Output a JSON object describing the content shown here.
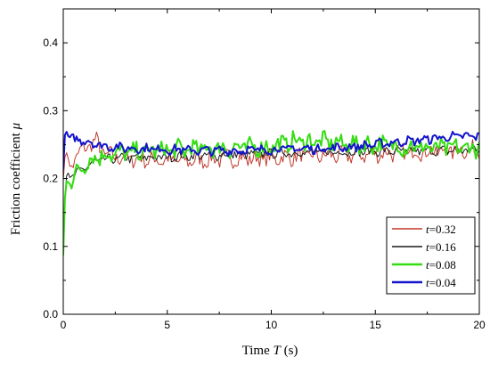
{
  "chart_data": {
    "type": "line",
    "xlabel": "Time T (s)",
    "xlabel_parts": {
      "pre": "Time ",
      "italic": "T",
      "post": " (s)"
    },
    "ylabel": "Friction coefficient μ",
    "ylabel_parts": {
      "pre": "Friction coefficient ",
      "italic": "μ"
    },
    "xlim": [
      0,
      20
    ],
    "ylim": [
      0.0,
      0.45
    ],
    "xticks": [
      "0",
      "5",
      "10",
      "15",
      "20"
    ],
    "yticks": [
      "0.0",
      "0.1",
      "0.2",
      "0.3",
      "0.4"
    ],
    "legend_position": "bottom-right",
    "grid": false,
    "series": [
      {
        "name": "t=0.32",
        "name_italic": "t",
        "name_rest": "=0.32",
        "color": "#c0392b",
        "stroke_width": 1,
        "x": [
          0,
          0.1,
          0.2,
          0.3,
          0.5,
          0.7,
          1.0,
          1.3,
          1.6,
          2.0,
          3,
          4,
          5,
          6,
          7,
          8,
          9,
          10,
          11,
          12,
          13,
          14,
          15,
          16,
          17,
          18,
          19,
          20
        ],
        "y": [
          0.2,
          0.235,
          0.24,
          0.215,
          0.225,
          0.235,
          0.245,
          0.25,
          0.255,
          0.235,
          0.23,
          0.228,
          0.227,
          0.226,
          0.228,
          0.23,
          0.229,
          0.23,
          0.232,
          0.233,
          0.234,
          0.235,
          0.236,
          0.238,
          0.239,
          0.24,
          0.241,
          0.243
        ],
        "noise": 0.011
      },
      {
        "name": "t=0.16",
        "name_italic": "t",
        "name_rest": "=0.16",
        "color": "#1a1a1a",
        "stroke_width": 1,
        "x": [
          0,
          0.1,
          0.2,
          0.3,
          0.5,
          0.8,
          1.2,
          1.6,
          2.0,
          3,
          4,
          5,
          6,
          7,
          8,
          9,
          10,
          11,
          12,
          13,
          14,
          15,
          16,
          17,
          18,
          19,
          20
        ],
        "y": [
          0.1,
          0.19,
          0.215,
          0.2,
          0.205,
          0.21,
          0.22,
          0.225,
          0.228,
          0.23,
          0.231,
          0.232,
          0.233,
          0.234,
          0.235,
          0.236,
          0.237,
          0.238,
          0.238,
          0.239,
          0.239,
          0.24,
          0.24,
          0.241,
          0.241,
          0.242,
          0.242
        ],
        "noise": 0.006
      },
      {
        "name": "t=0.08",
        "name_italic": "t",
        "name_rest": "=0.08",
        "color": "#33dd11",
        "stroke_width": 2,
        "x": [
          0,
          0.1,
          0.2,
          0.3,
          0.5,
          0.8,
          1.2,
          1.6,
          2.0,
          3,
          4,
          5,
          6,
          7,
          8,
          9,
          10,
          11,
          12,
          13,
          14,
          15,
          16,
          17,
          18,
          19,
          20
        ],
        "y": [
          0.085,
          0.19,
          0.2,
          0.195,
          0.2,
          0.215,
          0.225,
          0.232,
          0.235,
          0.238,
          0.24,
          0.242,
          0.243,
          0.245,
          0.245,
          0.246,
          0.247,
          0.255,
          0.255,
          0.253,
          0.25,
          0.25,
          0.248,
          0.246,
          0.245,
          0.245,
          0.245
        ],
        "noise": 0.012
      },
      {
        "name": "t=0.04",
        "name_italic": "t",
        "name_rest": "=0.04",
        "color": "#1414cc",
        "stroke_width": 2,
        "x": [
          0,
          0.1,
          0.2,
          0.3,
          0.5,
          0.8,
          1.2,
          1.6,
          2.0,
          3,
          4,
          5,
          6,
          7,
          8,
          9,
          10,
          11,
          12,
          13,
          14,
          15,
          16,
          17,
          18,
          19,
          20
        ],
        "y": [
          0.215,
          0.275,
          0.265,
          0.26,
          0.258,
          0.257,
          0.255,
          0.25,
          0.248,
          0.245,
          0.244,
          0.243,
          0.242,
          0.241,
          0.241,
          0.242,
          0.243,
          0.244,
          0.244,
          0.245,
          0.247,
          0.25,
          0.254,
          0.256,
          0.26,
          0.262,
          0.262
        ],
        "noise": 0.006
      }
    ]
  }
}
